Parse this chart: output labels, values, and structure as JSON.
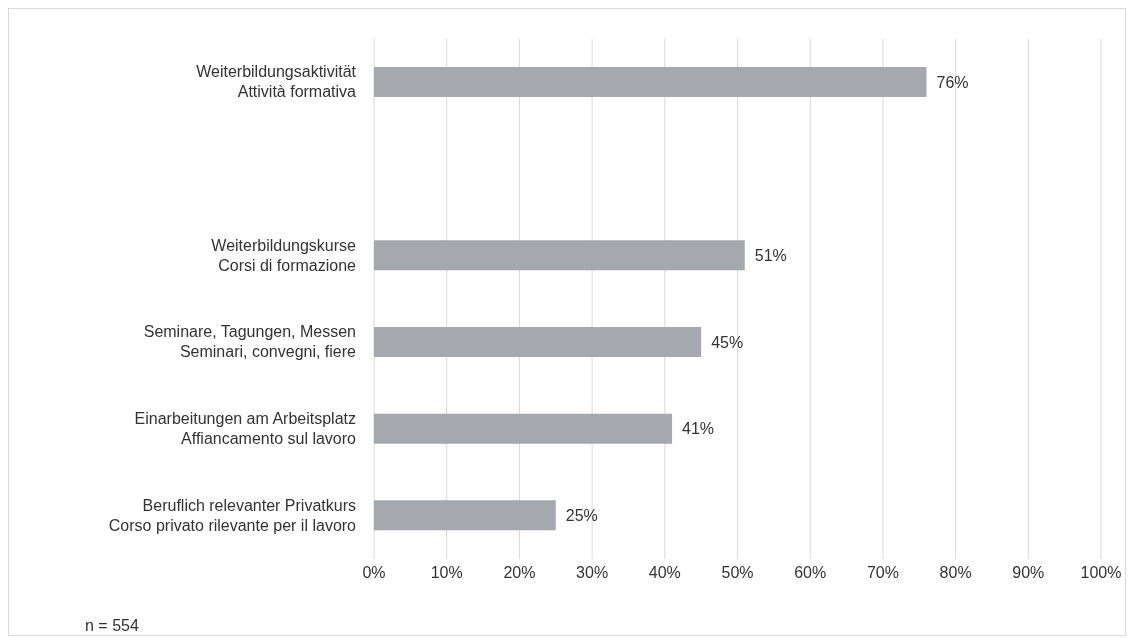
{
  "chart_data": {
    "type": "bar",
    "orientation": "horizontal",
    "categories": [
      "Weiterbildungsaktivität\nAttività formativa",
      null,
      "Weiterbildungskurse\nCorsi di formazione",
      "Seminare, Tagungen, Messen\nSeminari, convegni, fiere",
      "Einarbeitungen am Arbeitsplatz\nAffiancamento sul lavoro",
      "Beruflich relevanter Privatkurs\nCorso privato rilevante per il lavoro"
    ],
    "values": [
      76,
      null,
      51,
      45,
      41,
      25
    ],
    "value_labels": [
      "76%",
      null,
      "51%",
      "45%",
      "41%",
      "25%"
    ],
    "color": "#a5a8ad",
    "xlim": [
      0,
      100
    ],
    "xticks": [
      {
        "value": 0,
        "label": "0%"
      },
      {
        "value": 10,
        "label": "10%"
      },
      {
        "value": 20,
        "label": "20%"
      },
      {
        "value": 30,
        "label": "30%"
      },
      {
        "value": 40,
        "label": "40%"
      },
      {
        "value": 50,
        "label": "50%"
      },
      {
        "value": 60,
        "label": "60%"
      },
      {
        "value": 70,
        "label": "70%"
      },
      {
        "value": 80,
        "label": "80%"
      },
      {
        "value": 90,
        "label": "90%"
      },
      {
        "value": 100,
        "label": "100%"
      }
    ],
    "grid": "x",
    "annotations": [
      "n = 554"
    ]
  }
}
